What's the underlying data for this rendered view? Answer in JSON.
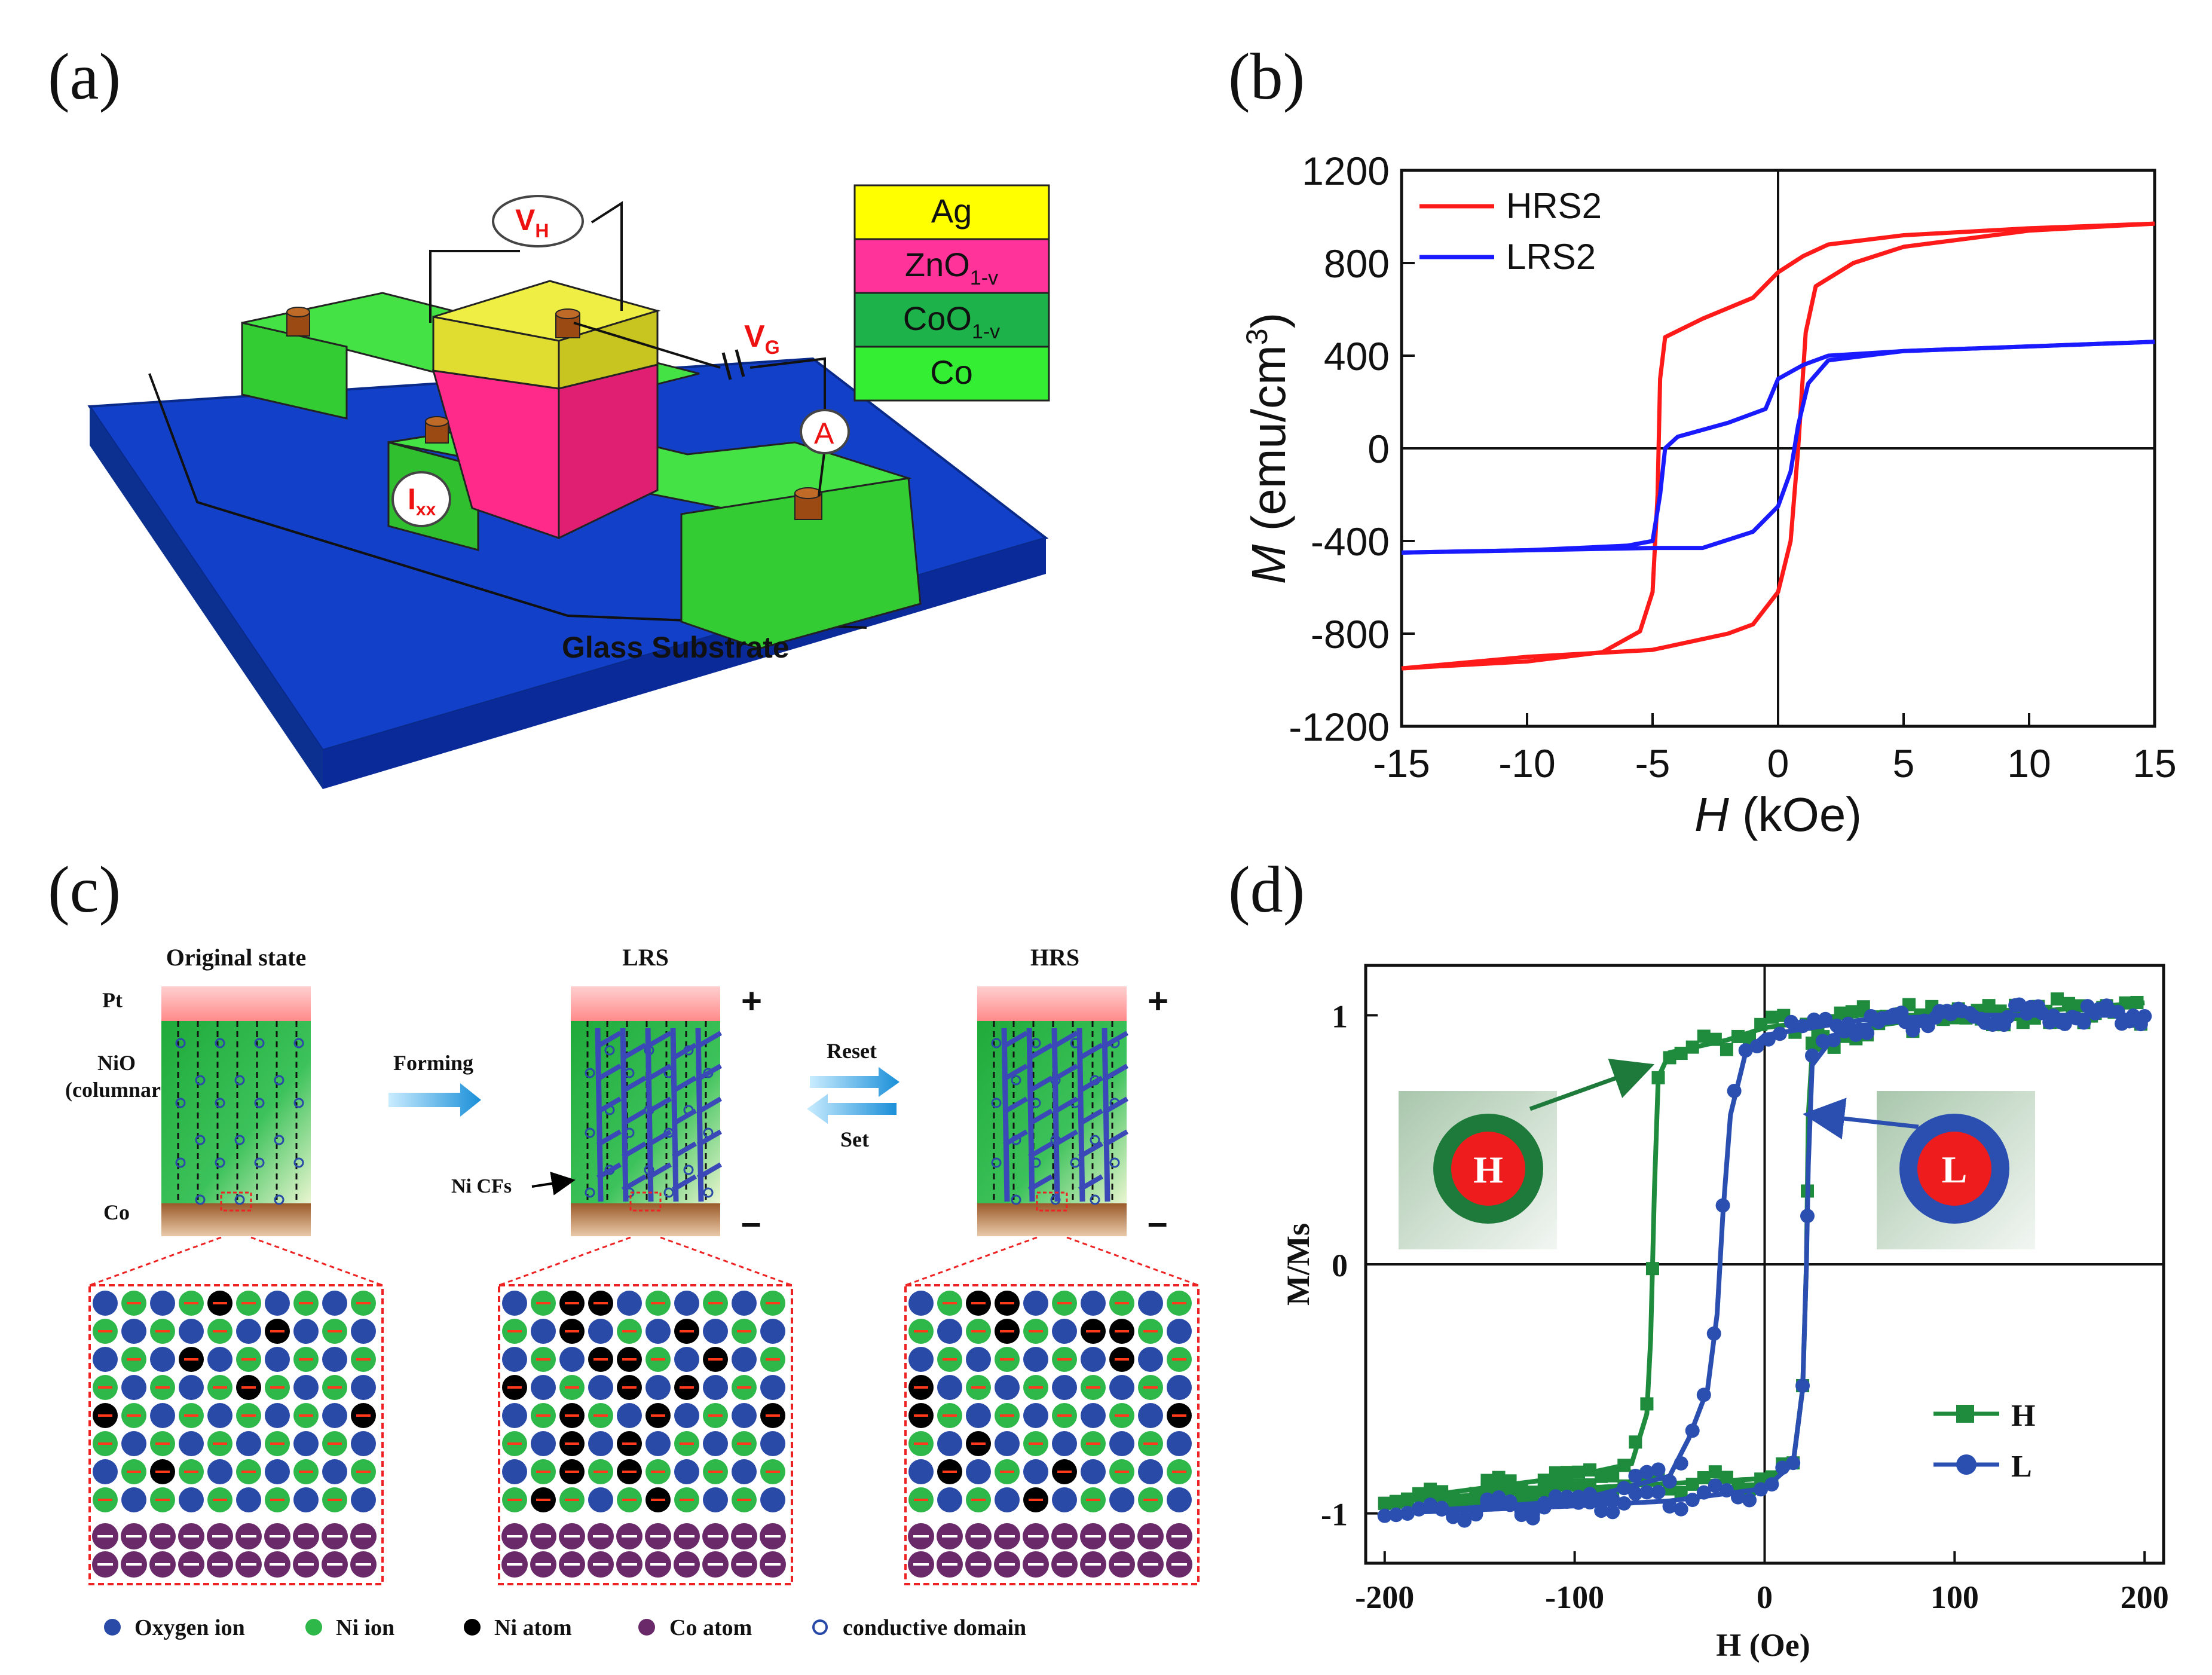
{
  "figure": {
    "panel_labels": {
      "a": "(a)",
      "b": "(b)",
      "c": "(c)",
      "d": "(d)"
    }
  },
  "panel_a": {
    "layers": [
      {
        "label": "Ag",
        "color": "#ffff00"
      },
      {
        "label": "ZnO",
        "sub": "1-v",
        "color": "#ff3399"
      },
      {
        "label": "CoO",
        "sub": "1-v",
        "color": "#1db24a"
      },
      {
        "label": "Co",
        "color": "#33ee33"
      }
    ],
    "vh": {
      "main": "V",
      "sub": "H"
    },
    "vg": {
      "main": "V",
      "sub": "G"
    },
    "ammeter": "A",
    "ixx": {
      "main": "I",
      "sub": "xx"
    },
    "substrate_label": "Glass Substrate",
    "colors": {
      "substrate": "#1040c8",
      "co": "#33dd33",
      "zno": "#ff2a8a",
      "ag": "#e6e33a",
      "contact": "#9a4a12",
      "label_red": "#ee1111"
    }
  },
  "panel_b": {
    "chart_data": {
      "type": "line",
      "title": "",
      "xlabel": {
        "italic": "H",
        "rest": " (kOe)"
      },
      "ylabel": {
        "italic": "M",
        "rest": " (emu/cm",
        "sup": "3",
        "close": ")"
      },
      "xlim": [
        -15,
        15
      ],
      "ylim": [
        -1200,
        1200
      ],
      "xticks": [
        -15,
        -10,
        -5,
        0,
        5,
        10,
        15
      ],
      "yticks": [
        -1200,
        -800,
        -400,
        0,
        400,
        800,
        1200
      ],
      "legend": "top-left",
      "series": [
        {
          "name": "HRS2",
          "color": "#ff1a1a",
          "upper": [
            [
              -15,
              -950
            ],
            [
              -10,
              -920
            ],
            [
              -7,
              -880
            ],
            [
              -5.5,
              -790
            ],
            [
              -5,
              -620
            ],
            [
              -4.8,
              -200
            ],
            [
              -4.7,
              300
            ],
            [
              -4.5,
              480
            ],
            [
              -3,
              560
            ],
            [
              -1,
              650
            ],
            [
              0,
              760
            ],
            [
              1,
              830
            ],
            [
              2,
              880
            ],
            [
              5,
              920
            ],
            [
              10,
              950
            ],
            [
              15,
              970
            ]
          ],
          "lower": [
            [
              -15,
              -950
            ],
            [
              -10,
              -900
            ],
            [
              -5,
              -870
            ],
            [
              -2,
              -800
            ],
            [
              -1,
              -760
            ],
            [
              0,
              -620
            ],
            [
              0.5,
              -400
            ],
            [
              0.8,
              0
            ],
            [
              1.1,
              500
            ],
            [
              1.5,
              700
            ],
            [
              3,
              800
            ],
            [
              5,
              870
            ],
            [
              10,
              940
            ],
            [
              15,
              970
            ]
          ]
        },
        {
          "name": "LRS2",
          "color": "#1a1aff",
          "upper": [
            [
              -15,
              -450
            ],
            [
              -10,
              -440
            ],
            [
              -6,
              -420
            ],
            [
              -5,
              -400
            ],
            [
              -4.7,
              -200
            ],
            [
              -4.5,
              0
            ],
            [
              -4,
              50
            ],
            [
              -2,
              110
            ],
            [
              -0.5,
              170
            ],
            [
              0,
              300
            ],
            [
              1,
              360
            ],
            [
              2,
              400
            ],
            [
              5,
              420
            ],
            [
              10,
              440
            ],
            [
              15,
              460
            ]
          ],
          "lower": [
            [
              -15,
              -450
            ],
            [
              -10,
              -440
            ],
            [
              -5,
              -430
            ],
            [
              -3,
              -430
            ],
            [
              -1,
              -360
            ],
            [
              0,
              -250
            ],
            [
              0.5,
              -100
            ],
            [
              0.8,
              100
            ],
            [
              1.2,
              280
            ],
            [
              2,
              380
            ],
            [
              5,
              420
            ],
            [
              10,
              440
            ],
            [
              15,
              460
            ]
          ]
        }
      ]
    }
  },
  "panel_c": {
    "states": [
      {
        "title": "Original state",
        "sign_top": "",
        "sign_bottom": ""
      },
      {
        "title": "LRS",
        "sign_top": "+",
        "sign_bottom": "–"
      },
      {
        "title": "HRS",
        "sign_top": "+",
        "sign_bottom": "–"
      }
    ],
    "layer_labels": {
      "pt": "Pt",
      "nio": "NiO",
      "nio2": "(columnar)",
      "co": "Co"
    },
    "forming": "Forming",
    "reset": "Reset",
    "set": "Set",
    "ni_cfs": "Ni CFs",
    "legend": [
      {
        "label": "Oxygen ion",
        "color": "#2a4aa8"
      },
      {
        "label": "Ni ion",
        "color": "#2fb84a"
      },
      {
        "label": "Ni atom",
        "color": "#000000"
      },
      {
        "label": "Co atom",
        "color": "#6a2a6a"
      },
      {
        "label": "conductive domain",
        "color": "#2a4aa8"
      }
    ]
  },
  "panel_d": {
    "chart_data": {
      "type": "line",
      "title": "",
      "xlabel": "H (Oe)",
      "ylabel": "M/Ms",
      "xlim": [
        -210,
        210
      ],
      "ylim": [
        -1.2,
        1.2
      ],
      "xticks": [
        -200,
        -100,
        0,
        100,
        200
      ],
      "yticks": [
        -1,
        0,
        1
      ],
      "ytick_labels": [
        "-1",
        "0",
        "1"
      ],
      "legend": "bottom-right",
      "series": [
        {
          "name": "H",
          "color": "#1e8c3c",
          "marker": "square",
          "upper": [
            [
              -200,
              -0.95
            ],
            [
              -150,
              -0.9
            ],
            [
              -100,
              -0.85
            ],
            [
              -70,
              -0.8
            ],
            [
              -62,
              -0.6
            ],
            [
              -60,
              -0.3
            ],
            [
              -58,
              0.3
            ],
            [
              -56,
              0.75
            ],
            [
              -50,
              0.85
            ],
            [
              -20,
              0.9
            ],
            [
              0,
              0.95
            ],
            [
              50,
              1.0
            ],
            [
              100,
              1.0
            ],
            [
              150,
              1.02
            ],
            [
              200,
              1.05
            ]
          ],
          "lower": [
            [
              -200,
              -0.95
            ],
            [
              -100,
              -0.9
            ],
            [
              -50,
              -0.88
            ],
            [
              0,
              -0.86
            ],
            [
              15,
              -0.8
            ],
            [
              20,
              -0.5
            ],
            [
              22,
              0
            ],
            [
              23,
              0.6
            ],
            [
              25,
              0.85
            ],
            [
              50,
              0.95
            ],
            [
              100,
              1.0
            ],
            [
              200,
              1.0
            ]
          ]
        },
        {
          "name": "L",
          "color": "#2a4fb0",
          "marker": "circle",
          "upper": [
            [
              -200,
              -1.0
            ],
            [
              -100,
              -0.95
            ],
            [
              -50,
              -0.85
            ],
            [
              -40,
              -0.7
            ],
            [
              -30,
              -0.5
            ],
            [
              -25,
              -0.2
            ],
            [
              -22,
              0.2
            ],
            [
              -18,
              0.6
            ],
            [
              -10,
              0.85
            ],
            [
              0,
              0.92
            ],
            [
              50,
              0.98
            ],
            [
              100,
              1.0
            ],
            [
              200,
              1.0
            ]
          ],
          "lower": [
            [
              -200,
              -1.0
            ],
            [
              -100,
              -0.97
            ],
            [
              -50,
              -0.95
            ],
            [
              0,
              -0.9
            ],
            [
              15,
              -0.8
            ],
            [
              20,
              -0.5
            ],
            [
              22,
              0
            ],
            [
              23,
              0.4
            ],
            [
              25,
              0.8
            ],
            [
              40,
              0.95
            ],
            [
              100,
              1.0
            ],
            [
              200,
              1.0
            ]
          ]
        }
      ]
    },
    "insets": [
      {
        "letter": "H",
        "ring": "#1e7a3a",
        "fill": "#ee1c1c"
      },
      {
        "letter": "L",
        "ring": "#2a4fb0",
        "fill": "#ee1c1c"
      }
    ]
  }
}
